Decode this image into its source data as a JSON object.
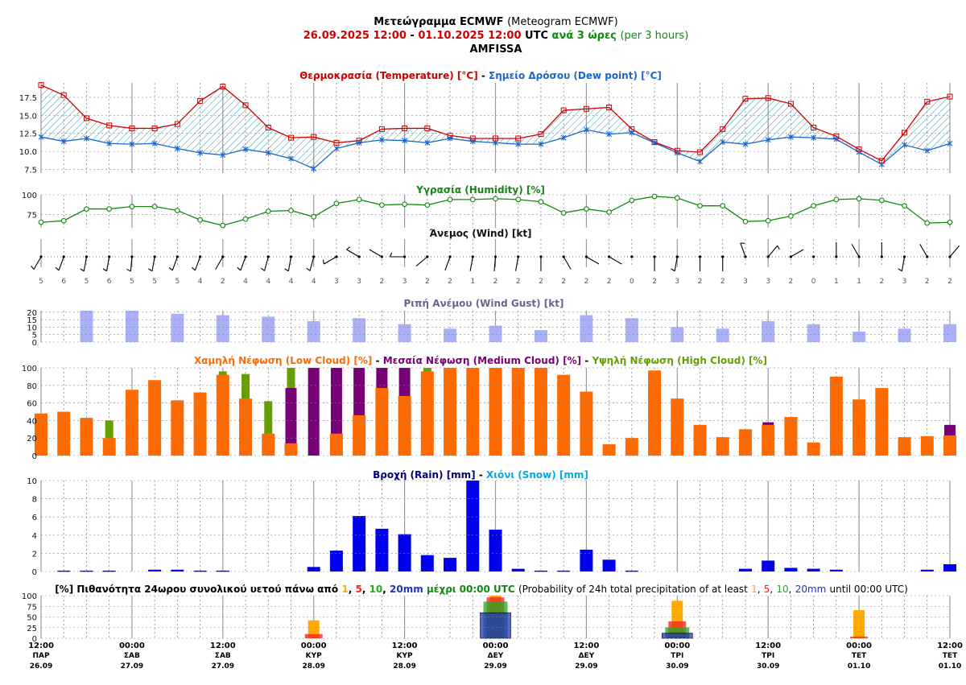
{
  "header": {
    "title_gr": "Μετεώγραμμα ECMWF",
    "title_en": "(Meteogram ECMWF)",
    "range_start": "26.09.2025 12:00",
    "range_sep": "-",
    "range_end": "01.10.2025 12:00",
    "utc": "UTC",
    "step_gr": "ανά 3 ώρες",
    "step_en": "(per 3 hours)",
    "location": "AMFISSA"
  },
  "colors": {
    "temperature": "#cc0000",
    "dew_point": "#1a66cc",
    "hatch": "#3399aa",
    "humidity": "#118811",
    "gust": "#aab0f5",
    "gust_title": "#666688",
    "low_cloud": "#ff6a00",
    "medium_cloud": "#770077",
    "high_cloud": "#66a000",
    "rain": "#0000ee",
    "snow": "#00aadd",
    "prob1": "#ffaa00",
    "prob5": "#ee2222",
    "prob10": "#22aa22",
    "prob20": "#2233bb"
  },
  "panels": {
    "temperature": {
      "title_gr": "Θερμοκρασία (Temperature) [°C]",
      "sep": "-",
      "title_dew": "Σημείο Δρόσου (Dew point) [°C]",
      "yticks": [
        "17.5",
        "15.0",
        "12.5",
        "10.0",
        "7.5"
      ]
    },
    "humidity": {
      "title": "Υγρασία (Humidity) [%]",
      "yticks": [
        "100",
        "75"
      ]
    },
    "wind": {
      "title": "Άνεμος (Wind) [kt]"
    },
    "gust": {
      "title": "Ριπή Ανέμου (Wind Gust) [kt]",
      "yticks": [
        "20",
        "15",
        "10",
        "5",
        "0"
      ]
    },
    "cloud": {
      "title_low": "Χαμηλή Νέφωση (Low Cloud) [%]",
      "title_med": "Μεσαία Νέφωση (Medium Cloud) [%]",
      "title_high": "Υψηλή Νέφωση (High Cloud) [%]",
      "sep": "-",
      "yticks": [
        "100",
        "80",
        "60",
        "40",
        "20",
        "0"
      ]
    },
    "precip": {
      "title_rain": "Βροχή (Rain) [mm]",
      "sep": "-",
      "title_snow": "Χιόνι (Snow) [mm]",
      "yticks": [
        "10",
        "8",
        "6",
        "4",
        "2",
        "0"
      ]
    },
    "prob": {
      "title_gr": "[%] Πιθανότητα 24ωρου συνολικού υετού πάνω από",
      "t1": "1",
      "c1": ",",
      "t5": "5",
      "c2": ",",
      "t10": "10",
      "c3": ",",
      "t20": "20mm",
      "title_gr_end": "μέχρι 00:00 UTC",
      "title_en_start": "(Probability of 24h total precipitation of at least",
      "e1": "1",
      "ec1": ",",
      "e5": "5",
      "ec2": ",",
      "e10": "10",
      "ec3": ",",
      "e20": "20mm",
      "title_en_end": "until 00:00 UTC)",
      "yticks": [
        "100",
        "75",
        "50",
        "25",
        "0"
      ]
    }
  },
  "x_axis": [
    {
      "time": "12:00",
      "day": "ΠΑΡ",
      "date": "26.09"
    },
    {
      "time": "00:00",
      "day": "ΣΑΒ",
      "date": "27.09"
    },
    {
      "time": "12:00",
      "day": "ΣΑΒ",
      "date": "27.09"
    },
    {
      "time": "00:00",
      "day": "ΚΥΡ",
      "date": "28.09"
    },
    {
      "time": "12:00",
      "day": "ΚΥΡ",
      "date": "28.09"
    },
    {
      "time": "00:00",
      "day": "ΔΕΥ",
      "date": "29.09"
    },
    {
      "time": "12:00",
      "day": "ΔΕΥ",
      "date": "29.09"
    },
    {
      "time": "00:00",
      "day": "ΤΡΙ",
      "date": "30.09"
    },
    {
      "time": "12:00",
      "day": "ΤΡΙ",
      "date": "30.09"
    },
    {
      "time": "00:00",
      "day": "ΤΕΤ",
      "date": "01.10"
    },
    {
      "time": "12:00",
      "day": "ΤΕΤ",
      "date": "01.10"
    }
  ],
  "chart_data": [
    {
      "type": "line",
      "title": "Θερμοκρασία (Temperature) [°C] - Σημείο Δρόσου (Dew point) [°C]",
      "ylim": [
        7,
        19.5
      ],
      "series": [
        {
          "name": "Θερμοκρασία (Temperature) [°C]",
          "values": [
            19.2,
            17.8,
            14.6,
            13.6,
            13.2,
            13.2,
            13.8,
            17.0,
            19.0,
            16.4,
            13.3,
            11.9,
            12.0,
            11.2,
            11.5,
            13.1,
            13.2,
            13.2,
            12.2,
            11.8,
            11.8,
            11.8,
            12.4,
            15.7,
            15.9,
            16.1,
            13.1,
            11.3,
            10.1,
            9.9,
            13.1,
            17.3,
            17.4,
            16.6,
            13.3,
            12.1,
            10.3,
            8.7,
            12.6,
            16.9,
            17.6
          ]
        },
        {
          "name": "Σημείο Δρόσου (Dew point) [°C]",
          "values": [
            12.0,
            11.4,
            11.8,
            11.1,
            11.0,
            11.1,
            10.4,
            9.8,
            9.5,
            10.3,
            9.8,
            9.0,
            7.6,
            10.4,
            11.2,
            11.6,
            11.5,
            11.2,
            11.8,
            11.4,
            11.2,
            11.0,
            11.0,
            11.9,
            13.0,
            12.4,
            12.6,
            11.2,
            9.8,
            8.6,
            11.3,
            11.0,
            11.6,
            12.0,
            11.9,
            11.7,
            9.9,
            8.2,
            10.9,
            10.1,
            11.1
          ]
        }
      ]
    },
    {
      "type": "line",
      "title": "Υγρασία (Humidity) [%]",
      "ylim": [
        58,
        100
      ],
      "series": [
        {
          "name": "Υγρασία (Humidity) [%]",
          "values": [
            65,
            67,
            82,
            82,
            85,
            85,
            80,
            68,
            61,
            69,
            79,
            80,
            72,
            89,
            94,
            87,
            88,
            87,
            94,
            94,
            95,
            94,
            91,
            77,
            82,
            78,
            93,
            98,
            96,
            86,
            86,
            66,
            67,
            73,
            86,
            94,
            95,
            93,
            86,
            64,
            65
          ]
        }
      ]
    },
    {
      "type": "scatter",
      "title": "Άνεμος (Wind) [kt]",
      "series": [
        {
          "name": "Άνεμος (Wind) [kt]",
          "speed": [
            5,
            6,
            5,
            6,
            5,
            5,
            5,
            4,
            2,
            4,
            4,
            4,
            4,
            3,
            3,
            2,
            3,
            2,
            2,
            1,
            2,
            2,
            2,
            2,
            2,
            2,
            0,
            2,
            3,
            2,
            2,
            3,
            3,
            2,
            0,
            1,
            1,
            2,
            3,
            2,
            2
          ],
          "direction_deg": [
            210,
            200,
            190,
            190,
            185,
            190,
            200,
            200,
            210,
            200,
            195,
            190,
            195,
            240,
            300,
            300,
            270,
            230,
            200,
            190,
            185,
            190,
            180,
            150,
            120,
            120,
            0,
            180,
            190,
            180,
            180,
            340,
            40,
            60,
            0,
            0,
            330,
            360,
            190,
            330,
            40
          ]
        }
      ]
    },
    {
      "type": "bar",
      "title": "Ριπή Ανέμου (Wind Gust) [kt]",
      "ylim": [
        0,
        21
      ],
      "series": [
        {
          "name": "Ριπή Ανέμου (Wind Gust) [kt]",
          "values": [
            21,
            21,
            19,
            18,
            17,
            14,
            16,
            12,
            9,
            11,
            8,
            18,
            16,
            10,
            9,
            14,
            12,
            7,
            9,
            12
          ]
        }
      ]
    },
    {
      "type": "bar",
      "title": "Χαμηλή Νέφωση (Low Cloud) [%] - Μεσαία Νέφωση (Medium Cloud) [%] - Υψηλή Νέφωση (High Cloud) [%]",
      "ylim": [
        0,
        100
      ],
      "series": [
        {
          "name": "Χαμηλή Νέφωση (Low Cloud) [%]",
          "values": [
            48,
            50,
            43,
            20,
            75,
            86,
            63,
            72,
            92,
            65,
            25,
            14,
            0,
            25,
            46,
            77,
            68,
            96,
            100,
            100,
            100,
            100,
            100,
            92,
            73,
            13,
            20,
            97,
            65,
            35,
            21,
            30,
            35,
            44,
            15,
            90,
            64,
            77,
            21,
            22,
            23
          ]
        },
        {
          "name": "Μεσαία Νέφωση (Medium Cloud) [%]",
          "values": [
            0,
            0,
            0,
            0,
            0,
            0,
            0,
            0,
            0,
            0,
            0,
            77,
            100,
            100,
            100,
            100,
            100,
            0,
            0,
            0,
            0,
            0,
            0,
            0,
            0,
            0,
            0,
            0,
            0,
            0,
            0,
            0,
            38,
            0,
            0,
            0,
            0,
            0,
            0,
            0,
            35
          ]
        },
        {
          "name": "Υψηλή Νέφωση (High Cloud) [%]",
          "values": [
            0,
            0,
            0,
            40,
            0,
            0,
            0,
            0,
            96,
            93,
            62,
            100,
            0,
            0,
            0,
            0,
            0,
            100,
            0,
            0,
            0,
            0,
            0,
            0,
            0,
            0,
            0,
            0,
            0,
            0,
            0,
            0,
            0,
            0,
            0,
            0,
            0,
            0,
            0,
            0,
            0
          ]
        }
      ]
    },
    {
      "type": "bar",
      "title": "Βροχή (Rain) [mm] - Χιόνι (Snow) [mm]",
      "ylim": [
        0,
        10
      ],
      "series": [
        {
          "name": "Βροχή (Rain) [mm]",
          "values": [
            0,
            0.1,
            0.1,
            0.1,
            0,
            0.2,
            0.2,
            0.1,
            0.1,
            0,
            0,
            0,
            0.5,
            2.3,
            6.1,
            4.7,
            4.1,
            1.8,
            1.5,
            10,
            4.6,
            0.3,
            0.1,
            0.1,
            2.4,
            1.3,
            0.1,
            0,
            0,
            0,
            0,
            0.3,
            1.2,
            0.4,
            0.3,
            0.2,
            0,
            0,
            0,
            0.2,
            0.8
          ]
        },
        {
          "name": "Χιόνι (Snow) [mm]",
          "values": [
            0,
            0,
            0,
            0,
            0,
            0,
            0,
            0,
            0,
            0,
            0,
            0,
            0,
            0,
            0,
            0,
            0,
            0,
            0,
            0,
            0,
            0,
            0,
            0,
            0,
            0,
            0,
            0,
            0,
            0,
            0,
            0,
            0,
            0,
            0,
            0,
            0,
            0,
            0,
            0,
            0
          ]
        }
      ]
    },
    {
      "type": "bar",
      "title": "[%] Πιθανότητα 24ωρου συνολικού υετού",
      "ylim": [
        0,
        100
      ],
      "categories": [
        "28.09",
        "29.09",
        "30.09",
        "01.10"
      ],
      "series": [
        {
          "name": "1",
          "values": [
            42,
            100,
            88,
            66
          ]
        },
        {
          "name": "5",
          "values": [
            10,
            96,
            40,
            4
          ]
        },
        {
          "name": "10",
          "values": [
            0,
            86,
            26,
            0
          ]
        },
        {
          "name": "20mm",
          "values": [
            0,
            60,
            12,
            0
          ]
        }
      ]
    }
  ]
}
